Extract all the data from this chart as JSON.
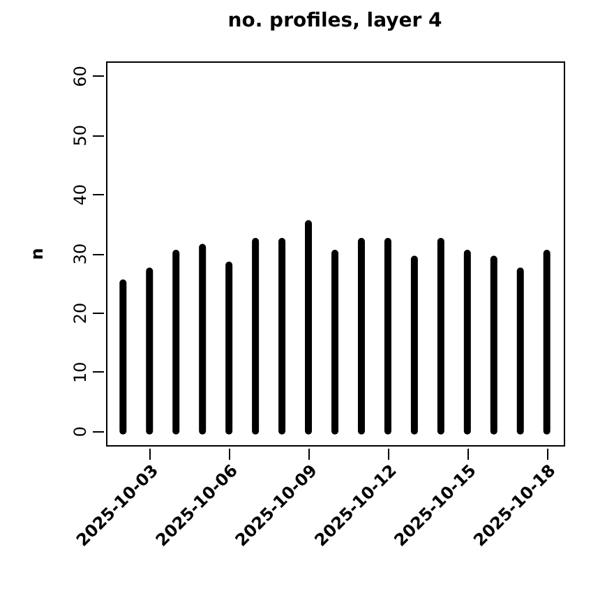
{
  "chart_data": {
    "type": "bar",
    "title": "no. profiles, layer 4",
    "ylabel": "n",
    "color": "#000000",
    "x": [
      "2025-10-02",
      "2025-10-03",
      "2025-10-04",
      "2025-10-05",
      "2025-10-06",
      "2025-10-07",
      "2025-10-08",
      "2025-10-09",
      "2025-10-10",
      "2025-10-11",
      "2025-10-12",
      "2025-10-13",
      "2025-10-14",
      "2025-10-15",
      "2025-10-16",
      "2025-10-17",
      "2025-10-18"
    ],
    "values": [
      25,
      27,
      30,
      31,
      28,
      32,
      32,
      35,
      30,
      32,
      32,
      29,
      32,
      30,
      29,
      27,
      30
    ],
    "xlim": [
      "2025-10-01T08:38",
      "2025-10-18T15:22"
    ],
    "xticks": [
      "2025-10-03",
      "2025-10-06",
      "2025-10-09",
      "2025-10-12",
      "2025-10-15",
      "2025-10-18"
    ],
    "ylim": [
      -2.4,
      62.4
    ],
    "yticks": [
      0,
      10,
      20,
      30,
      40,
      50,
      60
    ],
    "grid": false
  }
}
